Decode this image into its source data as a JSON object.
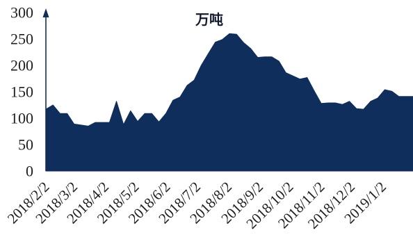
{
  "chart_data": {
    "type": "area",
    "title": "",
    "xlabel": "",
    "ylabel": "万吨",
    "x": [
      "2018-02-02",
      "2018-02-09",
      "2018-02-16",
      "2018-02-23",
      "2018-03-02",
      "2018-03-09",
      "2018-03-16",
      "2018-03-23",
      "2018-03-30",
      "2018-04-06",
      "2018-04-13",
      "2018-04-20",
      "2018-04-27",
      "2018-05-04",
      "2018-05-11",
      "2018-05-18",
      "2018-05-25",
      "2018-06-01",
      "2018-06-08",
      "2018-06-15",
      "2018-06-22",
      "2018-06-29",
      "2018-07-06",
      "2018-07-13",
      "2018-07-20",
      "2018-07-27",
      "2018-08-03",
      "2018-08-10",
      "2018-08-17",
      "2018-08-24",
      "2018-08-31",
      "2018-09-07",
      "2018-09-14",
      "2018-09-21",
      "2018-09-28",
      "2018-10-05",
      "2018-10-12",
      "2018-10-19",
      "2018-10-26",
      "2018-11-02",
      "2018-11-09",
      "2018-11-16",
      "2018-11-23",
      "2018-11-30",
      "2018-12-07",
      "2018-12-14",
      "2018-12-21",
      "2018-12-28",
      "2019-01-04",
      "2019-01-11",
      "2019-01-18",
      "2019-01-25",
      "2019-02-01"
    ],
    "series": [
      {
        "values": [
          117,
          125,
          109,
          109,
          89,
          87,
          85,
          92,
          92,
          92,
          132,
          88,
          114,
          94,
          109,
          109,
          93,
          109,
          134,
          140,
          162,
          172,
          200,
          222,
          244,
          249,
          260,
          259,
          243,
          232,
          215,
          216,
          216,
          208,
          186,
          180,
          174,
          177,
          152,
          128,
          129,
          129,
          126,
          132,
          118,
          117,
          132,
          138,
          154,
          151,
          141,
          141,
          141
        ]
      }
    ],
    "xlim": [
      "2018-02-02",
      "2019-02-01"
    ],
    "ylim": [
      0,
      300
    ],
    "yticks": [
      0,
      50,
      100,
      150,
      200,
      250,
      300
    ],
    "xtick_labels": [
      "2018/2/2",
      "2018/3/2",
      "2018/4/2",
      "2018/5/2",
      "2018/6/2",
      "2018/7/2",
      "2018/8/2",
      "2018/9/2",
      "2018/10/2",
      "2018/11/2",
      "2018/12/2",
      "2019/1/2"
    ],
    "grid": false,
    "legend": "none",
    "colors": {
      "area": "#0f2e5c",
      "axis": "#0f2e5c",
      "text": "#1e1e1e"
    }
  }
}
